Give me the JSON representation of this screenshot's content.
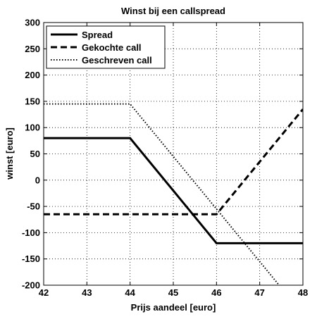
{
  "chart_data": {
    "type": "line",
    "title": "Winst bij een callspread",
    "xlabel": "Prijs aandeel [euro]",
    "ylabel": "winst [euro]",
    "xlim": [
      42,
      48
    ],
    "ylim": [
      -200,
      300
    ],
    "xticks": [
      42,
      43,
      44,
      45,
      46,
      47,
      48
    ],
    "yticks": [
      -200,
      -150,
      -100,
      -50,
      0,
      50,
      100,
      150,
      200,
      250,
      300
    ],
    "grid": true,
    "legend_position": "top-left",
    "series": [
      {
        "name": "Spread",
        "style": "solid",
        "color": "#000000",
        "x": [
          42,
          44,
          46,
          48
        ],
        "y": [
          80,
          80,
          -120,
          -120
        ]
      },
      {
        "name": "Gekochte call",
        "style": "dashed",
        "color": "#000000",
        "x": [
          42,
          46,
          48
        ],
        "y": [
          -65,
          -65,
          135
        ]
      },
      {
        "name": "Geschreven call",
        "style": "dotted",
        "color": "#000000",
        "x": [
          42,
          44,
          47.5
        ],
        "y": [
          145,
          145,
          -205
        ]
      }
    ]
  }
}
